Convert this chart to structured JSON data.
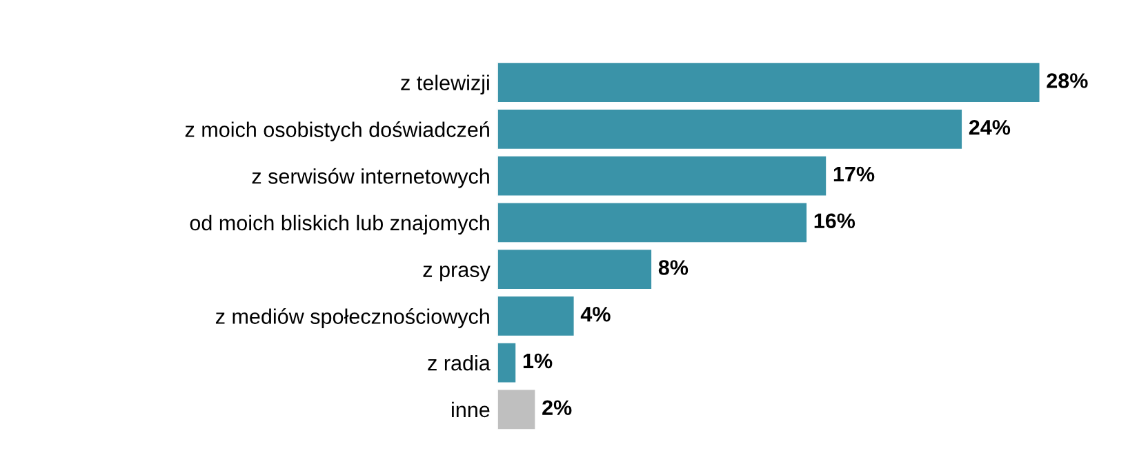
{
  "chart_data": {
    "type": "bar",
    "orientation": "horizontal",
    "categories": [
      "z telewizji",
      "z moich osobistych doświadczeń",
      "z serwisów internetowych",
      "od moich bliskich lub znajomych",
      "z prasy",
      "z mediów społecznościowych",
      "z radia",
      "inne"
    ],
    "values": [
      28,
      24,
      17,
      16,
      8,
      4,
      1,
      2
    ],
    "colors": [
      "#3a93a8",
      "#3a93a8",
      "#3a93a8",
      "#3a93a8",
      "#3a93a8",
      "#3a93a8",
      "#3a93a8",
      "#bfbfbf"
    ],
    "value_labels": [
      "28%",
      "24%",
      "17%",
      "16%",
      "8%",
      "4%",
      "1%",
      "2%"
    ],
    "grid": false,
    "legend": false
  }
}
